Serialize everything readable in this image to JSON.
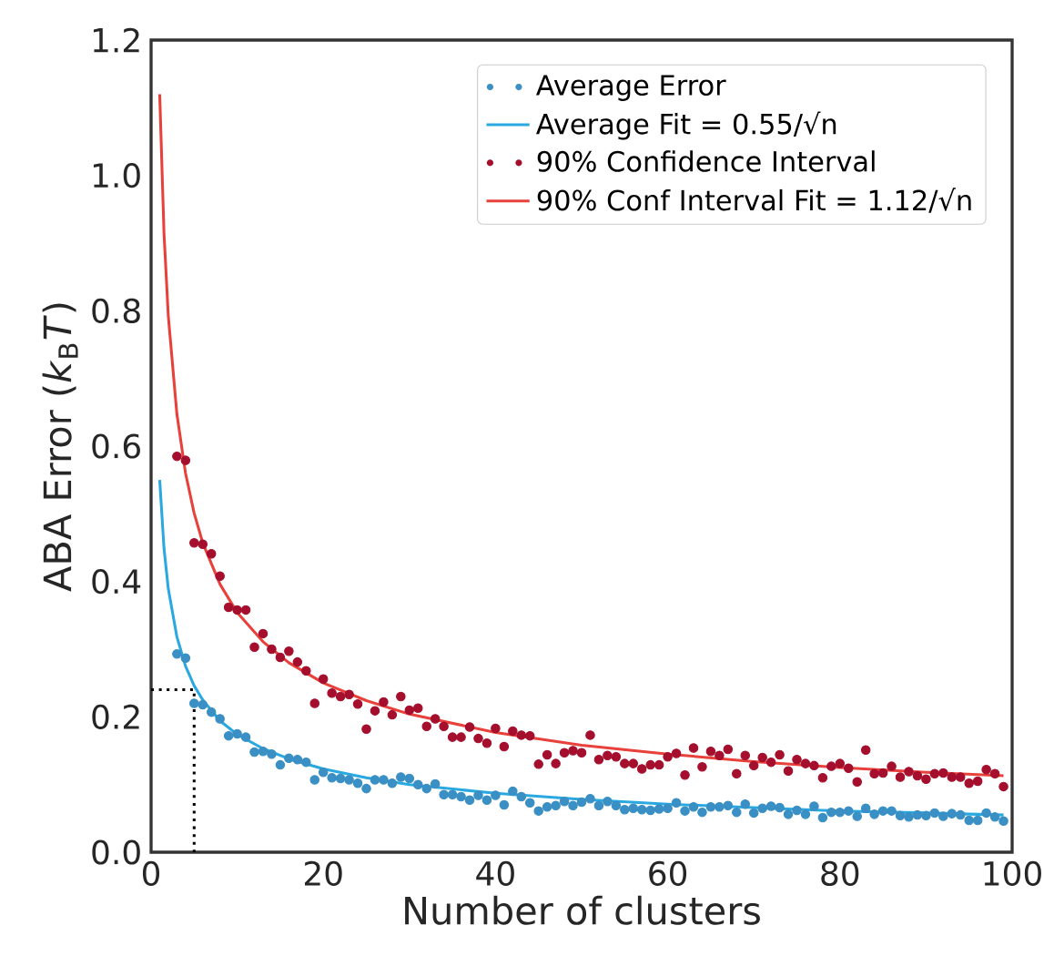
{
  "chart_data": {
    "type": "scatter",
    "xlabel": "Number of clusters",
    "ylabel": "ABA Error (*k*$_{B}$*T*)",
    "xlim": [
      0,
      100
    ],
    "xticks": [
      0,
      20,
      40,
      60,
      80,
      100
    ],
    "ylim": [
      0,
      1.2
    ],
    "yticks": [
      {
        "value": 0,
        "label": "0.0"
      },
      {
        "value": 0.2,
        "label": "0.2"
      },
      {
        "value": 0.4,
        "label": "0.4"
      },
      {
        "value": 0.6,
        "label": "0.6"
      },
      {
        "value": 0.8,
        "label": "0.8"
      },
      {
        "value": 1.0,
        "label": "1.0"
      },
      {
        "value": 1.2,
        "label": "1.2"
      }
    ],
    "legend": "top right",
    "series": [
      {
        "name": "Average Error",
        "marker": "circle",
        "color": "#3a8fc4",
        "x": [
          3,
          4,
          5,
          6,
          7,
          8,
          9,
          10,
          11,
          12,
          13,
          14,
          15,
          16,
          17,
          18,
          19,
          20,
          21,
          22,
          23,
          24,
          25,
          26,
          27,
          28,
          29,
          30,
          31,
          32,
          33,
          34,
          35,
          36,
          37,
          38,
          39,
          40,
          41,
          42,
          43,
          44,
          45,
          46,
          47,
          48,
          49,
          50,
          51,
          52,
          53,
          54,
          55,
          56,
          57,
          58,
          59,
          60,
          61,
          62,
          63,
          64,
          65,
          66,
          67,
          68,
          69,
          70,
          71,
          72,
          73,
          74,
          75,
          76,
          77,
          78,
          79,
          80,
          81,
          82,
          83,
          84,
          85,
          86,
          87,
          88,
          89,
          90,
          91,
          92,
          93,
          94,
          95,
          96,
          97,
          98,
          99
        ],
        "values": [
          0.293,
          0.287,
          0.22,
          0.218,
          0.207,
          0.197,
          0.172,
          0.175,
          0.17,
          0.148,
          0.149,
          0.145,
          0.129,
          0.139,
          0.137,
          0.133,
          0.107,
          0.118,
          0.11,
          0.109,
          0.107,
          0.102,
          0.094,
          0.107,
          0.107,
          0.102,
          0.111,
          0.109,
          0.1,
          0.094,
          0.101,
          0.085,
          0.085,
          0.082,
          0.077,
          0.084,
          0.077,
          0.084,
          0.07,
          0.09,
          0.082,
          0.073,
          0.061,
          0.067,
          0.069,
          0.075,
          0.069,
          0.074,
          0.079,
          0.069,
          0.075,
          0.069,
          0.063,
          0.065,
          0.063,
          0.062,
          0.064,
          0.065,
          0.073,
          0.061,
          0.067,
          0.059,
          0.067,
          0.067,
          0.069,
          0.059,
          0.071,
          0.058,
          0.065,
          0.068,
          0.066,
          0.056,
          0.062,
          0.056,
          0.068,
          0.051,
          0.059,
          0.059,
          0.061,
          0.053,
          0.065,
          0.056,
          0.061,
          0.061,
          0.054,
          0.052,
          0.055,
          0.054,
          0.058,
          0.053,
          0.057,
          0.055,
          0.047,
          0.047,
          0.058,
          0.052,
          0.046
        ]
      },
      {
        "name": "Average Fit = 0.55/√n",
        "type": "line",
        "marker": "none",
        "line_style": "solid",
        "color": "#2aa8e0",
        "x": [
          1,
          1.5,
          2,
          3,
          4,
          5,
          6,
          8,
          10,
          13,
          16,
          20,
          25,
          30,
          40,
          50,
          60,
          70,
          80,
          90,
          99
        ],
        "values": [
          0.55,
          0.449,
          0.389,
          0.318,
          0.275,
          0.246,
          0.225,
          0.194,
          0.174,
          0.153,
          0.138,
          0.123,
          0.11,
          0.1,
          0.087,
          0.078,
          0.071,
          0.066,
          0.061,
          0.058,
          0.055
        ]
      },
      {
        "name": "90% Confidence Interval",
        "marker": "circle",
        "color": "#a50f2d",
        "x": [
          3,
          4,
          5,
          6,
          7,
          8,
          9,
          10,
          11,
          12,
          13,
          14,
          15,
          16,
          17,
          18,
          19,
          20,
          21,
          22,
          23,
          24,
          25,
          26,
          27,
          28,
          29,
          30,
          31,
          32,
          33,
          34,
          35,
          36,
          37,
          38,
          39,
          40,
          41,
          42,
          43,
          44,
          45,
          46,
          47,
          48,
          49,
          50,
          51,
          52,
          53,
          54,
          55,
          56,
          57,
          58,
          59,
          60,
          61,
          62,
          63,
          64,
          65,
          66,
          67,
          68,
          69,
          70,
          71,
          72,
          73,
          74,
          75,
          76,
          77,
          78,
          79,
          80,
          81,
          82,
          83,
          84,
          85,
          86,
          87,
          88,
          89,
          90,
          91,
          92,
          93,
          94,
          95,
          96,
          97,
          98,
          99
        ],
        "values": [
          0.585,
          0.579,
          0.457,
          0.455,
          0.441,
          0.408,
          0.362,
          0.358,
          0.358,
          0.303,
          0.323,
          0.3,
          0.288,
          0.297,
          0.281,
          0.268,
          0.22,
          0.256,
          0.235,
          0.23,
          0.233,
          0.219,
          0.182,
          0.209,
          0.222,
          0.203,
          0.23,
          0.21,
          0.213,
          0.186,
          0.197,
          0.186,
          0.17,
          0.17,
          0.185,
          0.168,
          0.161,
          0.183,
          0.156,
          0.179,
          0.173,
          0.172,
          0.13,
          0.144,
          0.131,
          0.147,
          0.15,
          0.147,
          0.173,
          0.137,
          0.143,
          0.141,
          0.131,
          0.131,
          0.123,
          0.129,
          0.129,
          0.141,
          0.146,
          0.114,
          0.154,
          0.126,
          0.149,
          0.143,
          0.152,
          0.116,
          0.143,
          0.128,
          0.14,
          0.133,
          0.144,
          0.12,
          0.137,
          0.131,
          0.128,
          0.11,
          0.127,
          0.131,
          0.124,
          0.104,
          0.151,
          0.116,
          0.117,
          0.127,
          0.111,
          0.119,
          0.113,
          0.108,
          0.116,
          0.117,
          0.111,
          0.111,
          0.102,
          0.105,
          0.122,
          0.116,
          0.097
        ]
      },
      {
        "name": "90% Conf Interval Fit = 1.12/√n",
        "type": "line",
        "marker": "none",
        "line_style": "solid",
        "color": "#e8403a",
        "x": [
          1,
          1.5,
          2,
          3,
          4,
          5,
          6,
          8,
          10,
          13,
          16,
          20,
          25,
          30,
          40,
          50,
          60,
          70,
          80,
          90,
          99
        ],
        "values": [
          1.12,
          0.914,
          0.792,
          0.647,
          0.56,
          0.501,
          0.457,
          0.396,
          0.354,
          0.311,
          0.28,
          0.25,
          0.224,
          0.204,
          0.177,
          0.158,
          0.145,
          0.134,
          0.125,
          0.118,
          0.113
        ]
      },
      {
        "type": "line",
        "marker": "none",
        "line_style": "dotted",
        "color": "#000000",
        "x": [
          0,
          5,
          5
        ],
        "values": [
          0.24,
          0.24,
          0
        ]
      }
    ]
  }
}
